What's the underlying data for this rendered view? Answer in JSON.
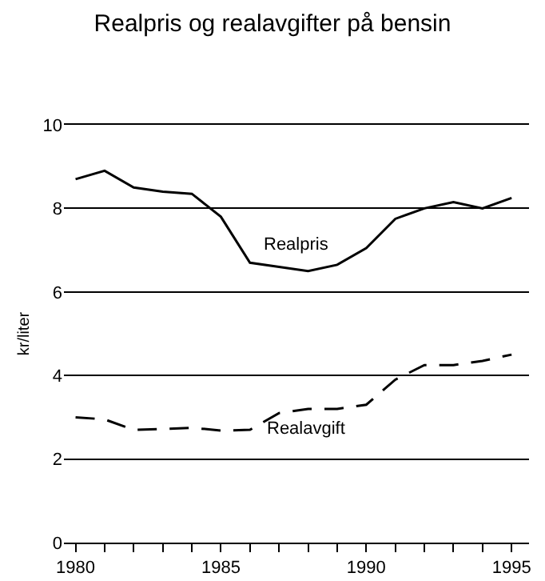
{
  "chart_data": {
    "type": "line",
    "title": "Realpris og realavgifter på bensin",
    "ylabel": "kr/liter",
    "x": [
      1980,
      1981,
      1982,
      1983,
      1984,
      1985,
      1986,
      1987,
      1988,
      1989,
      1990,
      1991,
      1992,
      1993,
      1994,
      1995
    ],
    "series": [
      {
        "color": "#000000",
        "line_style": "solid",
        "values": [
          8.7,
          8.9,
          8.5,
          8.4,
          8.35,
          7.8,
          6.7,
          6.6,
          6.5,
          6.65,
          7.05,
          7.75,
          8.0,
          8.15,
          8.0,
          8.25
        ]
      },
      {
        "color": "#000000",
        "line_style": "dashed",
        "values": [
          3.0,
          2.95,
          2.7,
          2.72,
          2.75,
          2.68,
          2.7,
          3.1,
          3.2,
          3.2,
          3.3,
          3.9,
          4.25,
          4.25,
          4.35,
          4.5
        ]
      }
    ],
    "annotations": [
      "Realpris",
      "Realavgift"
    ],
    "xlim": [
      1979.6,
      1995.6
    ],
    "xticks": [
      1980,
      {
        "value": 1981,
        "label": null
      },
      {
        "value": 1982,
        "label": null
      },
      {
        "value": 1983,
        "label": null
      },
      {
        "value": 1984,
        "label": null
      },
      1985,
      {
        "value": 1986,
        "label": null
      },
      {
        "value": 1987,
        "label": null
      },
      {
        "value": 1988,
        "label": null
      },
      {
        "value": 1989,
        "label": null
      },
      1990,
      {
        "value": 1991,
        "label": null
      },
      {
        "value": 1992,
        "label": null
      },
      {
        "value": 1993,
        "label": null
      },
      {
        "value": 1994,
        "label": null
      },
      1995
    ],
    "ylim": [
      0,
      10
    ],
    "yticks": [
      0,
      2,
      4,
      6,
      8,
      10
    ],
    "grid": "y",
    "legend": false,
    "marker": "none"
  }
}
